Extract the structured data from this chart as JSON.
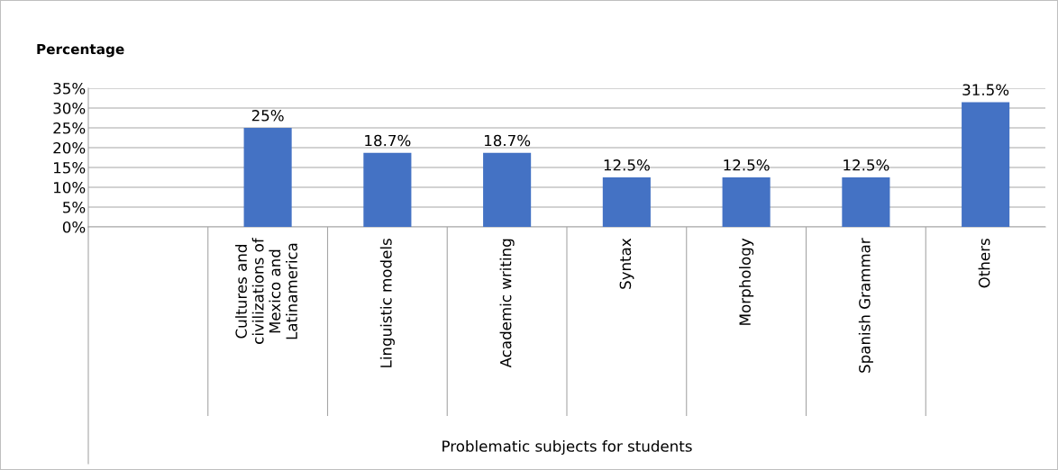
{
  "chart_data": {
    "type": "bar",
    "ylabel": "Percentage",
    "xlabel": "Problematic subjects for students",
    "categories": [
      null,
      "Cultures and\ncivilizations of\nMexico and\nLatinamerica",
      "Linguistic models",
      "Academic writing",
      "Syntax",
      "Morphology",
      "Spanish Grammar",
      "Others"
    ],
    "values": [
      null,
      25,
      18.7,
      18.7,
      12.5,
      12.5,
      12.5,
      31.5
    ],
    "value_labels": [
      null,
      "25%",
      "18.7%",
      "18.7%",
      "12.5%",
      "12.5%",
      "12.5%",
      "31.5%"
    ],
    "color": "#4472c4",
    "ylim": [
      0,
      35
    ],
    "yticks": [
      {
        "value": 0,
        "label": "0%"
      },
      {
        "value": 5,
        "label": "5%"
      },
      {
        "value": 10,
        "label": "10%"
      },
      {
        "value": 15,
        "label": "15%"
      },
      {
        "value": 20,
        "label": "20%"
      },
      {
        "value": 25,
        "label": "25%"
      },
      {
        "value": 30,
        "label": "30%"
      },
      {
        "value": 35,
        "label": "35%"
      }
    ],
    "grid": "y",
    "legend": false
  }
}
